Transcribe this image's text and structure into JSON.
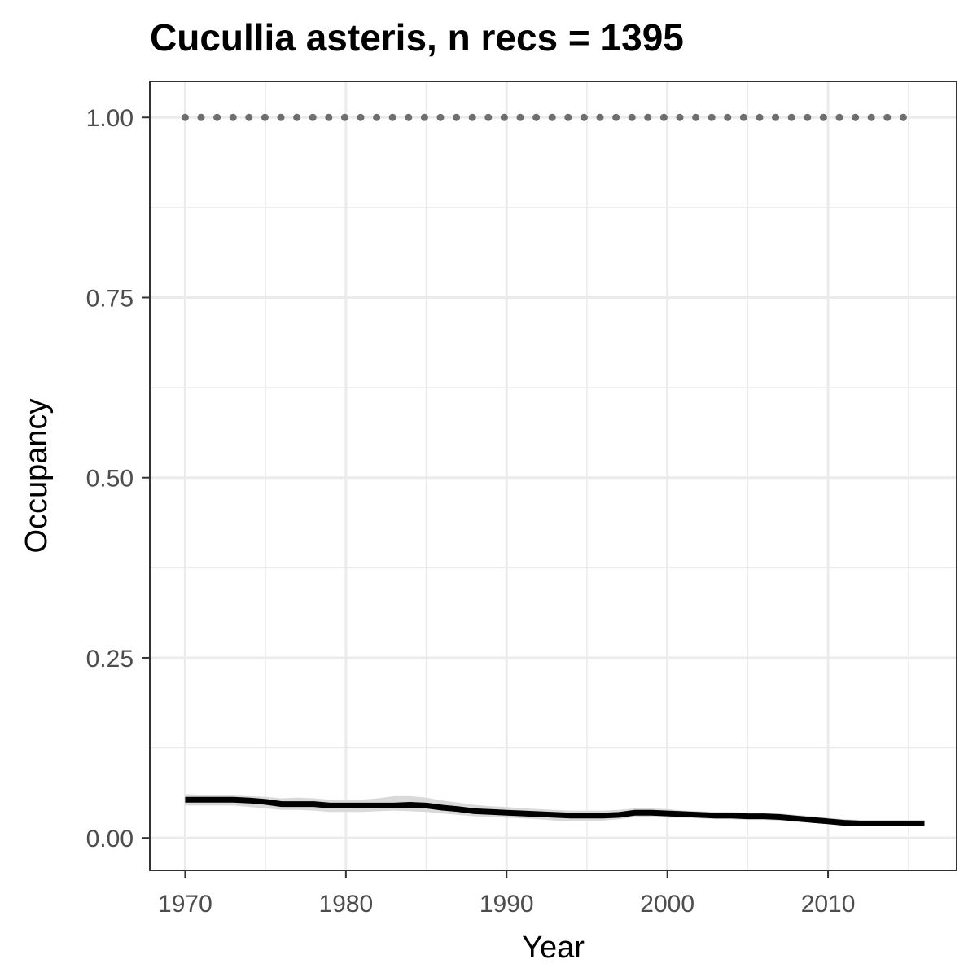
{
  "chart_data": {
    "type": "line",
    "title": "Cucullia asteris, n recs = 1395",
    "xlabel": "Year",
    "ylabel": "Occupancy",
    "xlim": [
      1967.8,
      2018.0
    ],
    "ylim": [
      -0.045,
      1.05
    ],
    "x_ticks": [
      1970,
      1980,
      1990,
      2000,
      2010
    ],
    "x_tick_labels": [
      "1970",
      "1980",
      "1990",
      "2000",
      "2010"
    ],
    "y_ticks": [
      0,
      0.25,
      0.5,
      0.75,
      1.0
    ],
    "y_tick_labels": [
      "0.00",
      "0.25",
      "0.50",
      "0.75",
      "1.00"
    ],
    "grid": true,
    "legend": "none",
    "colors": {
      "mean_line": "#000000",
      "ribbon": "#d9d9d9",
      "dotted_line": "#6e6e6e",
      "grid": "#ebebeb",
      "panel_border": "#333333"
    },
    "series": [
      {
        "style": "dotted",
        "x": [
          1970,
          2015
        ],
        "y": [
          1.0,
          1.0
        ]
      },
      {
        "style": "solid",
        "x": [
          1970,
          1971,
          1972,
          1973,
          1974,
          1975,
          1976,
          1977,
          1978,
          1979,
          1980,
          1981,
          1982,
          1983,
          1984,
          1985,
          1986,
          1987,
          1988,
          1989,
          1990,
          1991,
          1992,
          1993,
          1994,
          1995,
          1996,
          1997,
          1998,
          1999,
          2000,
          2001,
          2002,
          2003,
          2004,
          2005,
          2006,
          2007,
          2008,
          2009,
          2010,
          2011,
          2012,
          2013,
          2014,
          2015,
          2016
        ],
        "y": [
          0.053,
          0.053,
          0.053,
          0.053,
          0.052,
          0.05,
          0.047,
          0.047,
          0.047,
          0.045,
          0.045,
          0.045,
          0.045,
          0.045,
          0.046,
          0.045,
          0.042,
          0.04,
          0.037,
          0.036,
          0.035,
          0.034,
          0.033,
          0.032,
          0.031,
          0.031,
          0.031,
          0.032,
          0.035,
          0.035,
          0.034,
          0.033,
          0.032,
          0.031,
          0.031,
          0.03,
          0.03,
          0.029,
          0.027,
          0.025,
          0.023,
          0.021,
          0.02,
          0.02,
          0.02,
          0.02,
          0.02
        ],
        "lower": [
          0.045,
          0.045,
          0.045,
          0.045,
          0.043,
          0.041,
          0.039,
          0.039,
          0.038,
          0.036,
          0.036,
          0.036,
          0.037,
          0.038,
          0.037,
          0.036,
          0.034,
          0.032,
          0.03,
          0.029,
          0.028,
          0.027,
          0.026,
          0.024,
          0.023,
          0.023,
          0.024,
          0.026,
          0.029,
          0.029,
          0.028,
          0.028,
          0.027,
          0.026,
          0.026,
          0.025,
          0.025,
          0.024,
          0.022,
          0.021,
          0.019,
          0.017,
          0.016,
          0.016,
          0.016,
          0.016,
          0.016
        ],
        "upper": [
          0.061,
          0.06,
          0.059,
          0.059,
          0.058,
          0.057,
          0.055,
          0.056,
          0.055,
          0.053,
          0.053,
          0.053,
          0.055,
          0.058,
          0.058,
          0.056,
          0.052,
          0.049,
          0.046,
          0.044,
          0.043,
          0.041,
          0.04,
          0.039,
          0.038,
          0.038,
          0.038,
          0.039,
          0.041,
          0.041,
          0.04,
          0.038,
          0.037,
          0.036,
          0.036,
          0.035,
          0.035,
          0.034,
          0.032,
          0.03,
          0.028,
          0.026,
          0.025,
          0.025,
          0.025,
          0.025,
          0.025
        ]
      }
    ]
  }
}
